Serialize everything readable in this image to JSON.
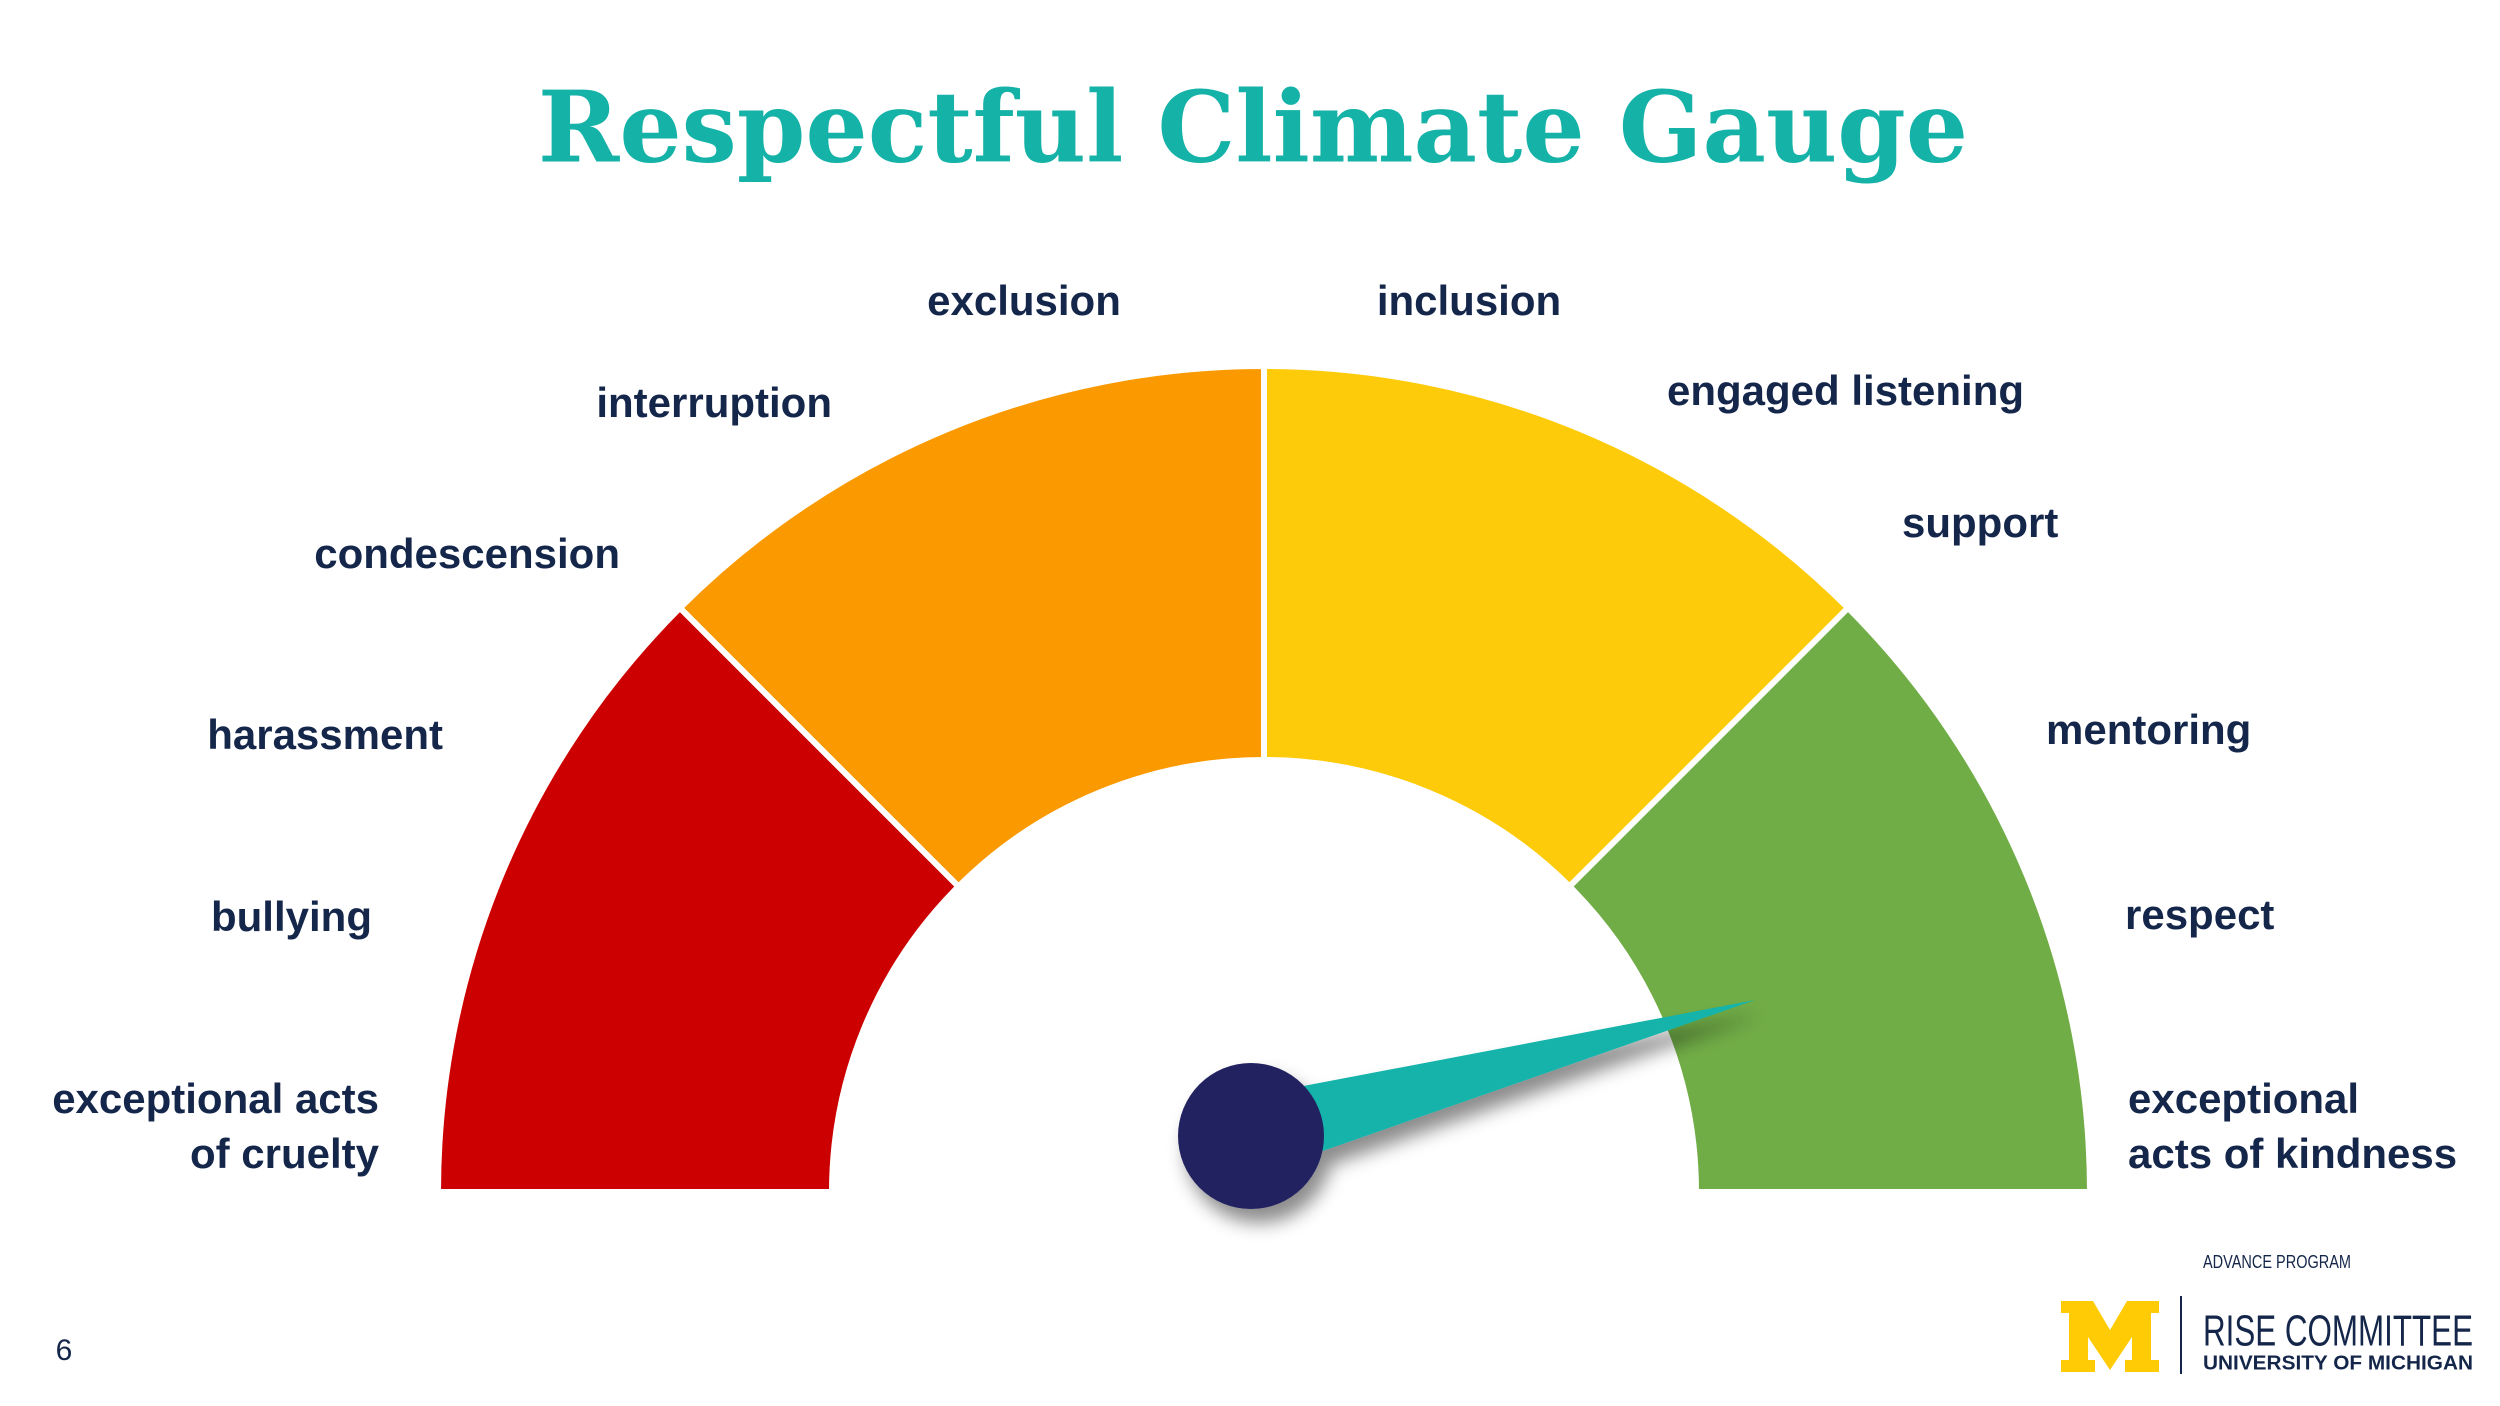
{
  "title": "Respectful Climate Gauge",
  "left_labels": [
    {
      "lines": [
        "exceptional acts",
        "of cruelty"
      ]
    },
    {
      "lines": [
        "bullying"
      ]
    },
    {
      "lines": [
        "harassment"
      ]
    },
    {
      "lines": [
        "condescension"
      ]
    },
    {
      "lines": [
        "interruption"
      ]
    },
    {
      "lines": [
        "exclusion"
      ]
    }
  ],
  "right_labels": [
    {
      "lines": [
        "inclusion"
      ]
    },
    {
      "lines": [
        "engaged listening"
      ]
    },
    {
      "lines": [
        "support"
      ]
    },
    {
      "lines": [
        "mentoring"
      ]
    },
    {
      "lines": [
        "respect"
      ]
    },
    {
      "lines": [
        "exceptional",
        "acts of kindness"
      ]
    }
  ],
  "page_number": "6",
  "logo": {
    "program": "ADVANCE PROGRAM",
    "committee": "RISE COMMITTEE",
    "university": "UNIVERSITY OF MICHIGAN"
  }
}
